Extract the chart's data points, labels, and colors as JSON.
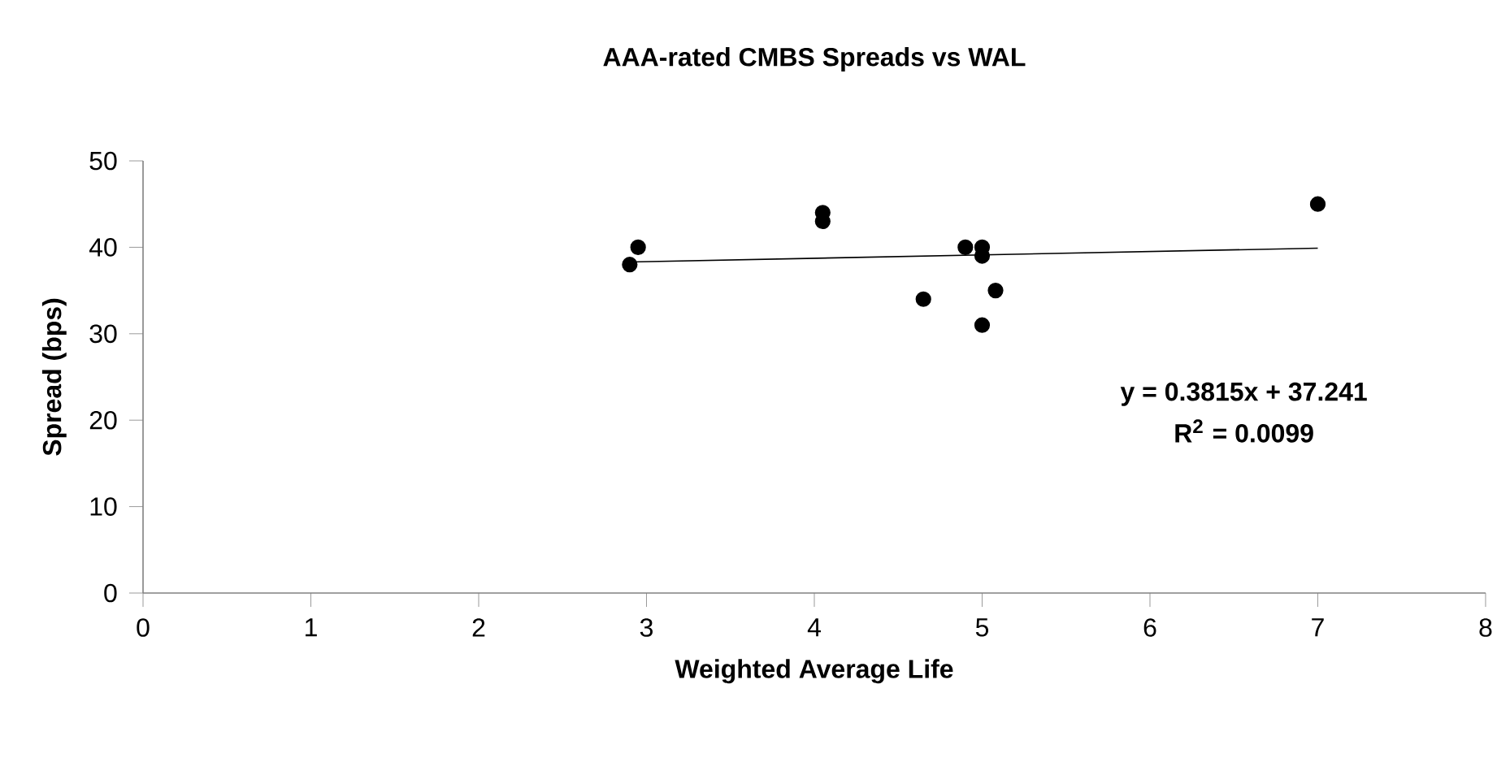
{
  "chart_data": {
    "type": "scatter",
    "title": "AAA-rated CMBS Spreads vs WAL",
    "xlabel": "Weighted Average Life",
    "ylabel": "Spread (bps)",
    "xlim": [
      0,
      8
    ],
    "xticks": [
      0,
      1,
      2,
      3,
      4,
      5,
      6,
      7,
      8
    ],
    "ylim": [
      0,
      50
    ],
    "yticks": [
      0,
      10,
      20,
      30,
      40,
      50
    ],
    "marker": "circle",
    "series": [
      {
        "color": "#000000",
        "x": [
          2.9,
          2.95,
          4.05,
          4.05,
          4.65,
          4.9,
          5.0,
          5.0,
          5.0,
          5.08,
          7.0
        ],
        "values": [
          38,
          40,
          44,
          43,
          34,
          40,
          40,
          39,
          31,
          35,
          45
        ]
      },
      {
        "type": "line",
        "marker": "none",
        "color": "#000000",
        "x": [
          2.9,
          7.0
        ],
        "values": [
          38.3,
          39.9
        ]
      }
    ],
    "annotations": [
      "y = 0.3815x + 37.241",
      "R$^{2}$ = 0.0099"
    ]
  }
}
